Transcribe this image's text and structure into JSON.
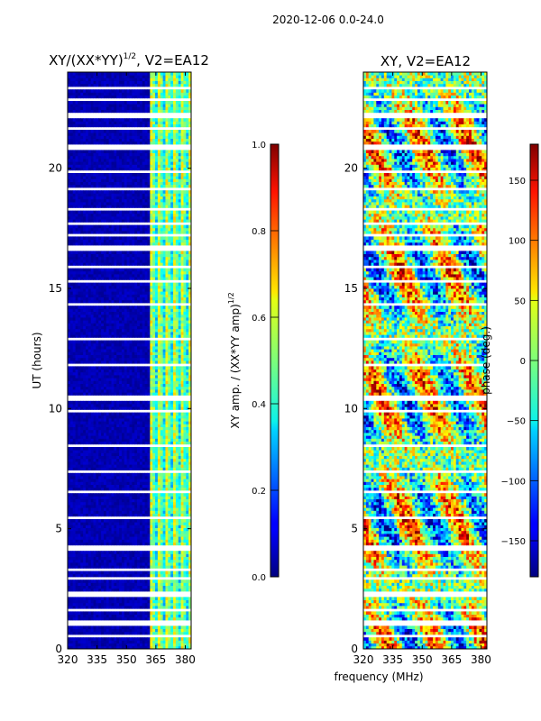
{
  "suptitle": "2020-12-06 0.0-24.0",
  "chart_data": [
    {
      "type": "heatmap",
      "title": "XY/(XX*YY)^1/2, V2=EA12",
      "title_main": "XY/(XX*YY)",
      "title_exp": "1/2",
      "title_tail": ", V2=EA12",
      "xlabel": "",
      "ylabel": "UT (hours)",
      "x_ticks": [
        "320",
        "335",
        "350",
        "365",
        "380"
      ],
      "x_tick_values": [
        320,
        335,
        350,
        365,
        380
      ],
      "xlim": [
        320,
        383
      ],
      "y_ticks": [
        "0",
        "5",
        "10",
        "15",
        "20"
      ],
      "y_tick_values": [
        0,
        5,
        10,
        15,
        20
      ],
      "ylim": [
        0,
        24
      ],
      "colorbar": {
        "label": "XY amp. / (XX*YY amp)^1/2",
        "label_main": "XY amp. / (XX*YY amp)",
        "label_exp": "1/2",
        "ticks": [
          "0.0",
          "0.2",
          "0.4",
          "0.6",
          "0.8",
          "1.0"
        ],
        "tick_values": [
          0.0,
          0.2,
          0.4,
          0.6,
          0.8,
          1.0
        ],
        "range": [
          0,
          1
        ]
      }
    },
    {
      "type": "heatmap",
      "title": "XY, V2=EA12",
      "xlabel": "frequency (MHz)",
      "ylabel": "",
      "x_ticks": [
        "320",
        "335",
        "350",
        "365",
        "380"
      ],
      "x_tick_values": [
        320,
        335,
        350,
        365,
        380
      ],
      "xlim": [
        320,
        383
      ],
      "y_ticks": [
        "0",
        "5",
        "10",
        "15",
        "20"
      ],
      "y_tick_values": [
        0,
        5,
        10,
        15,
        20
      ],
      "ylim": [
        0,
        24
      ],
      "colorbar": {
        "label": "phase (deg.)",
        "ticks": [
          "-150",
          "-100",
          "−50",
          "0",
          "50",
          "100",
          "150"
        ],
        "tick_labels_display": [
          "−150",
          "−100",
          "−50",
          "0",
          "50",
          "100",
          "150"
        ],
        "tick_values": [
          -150,
          -100,
          -50,
          0,
          50,
          100,
          150
        ],
        "range": [
          -180,
          180
        ]
      }
    }
  ]
}
